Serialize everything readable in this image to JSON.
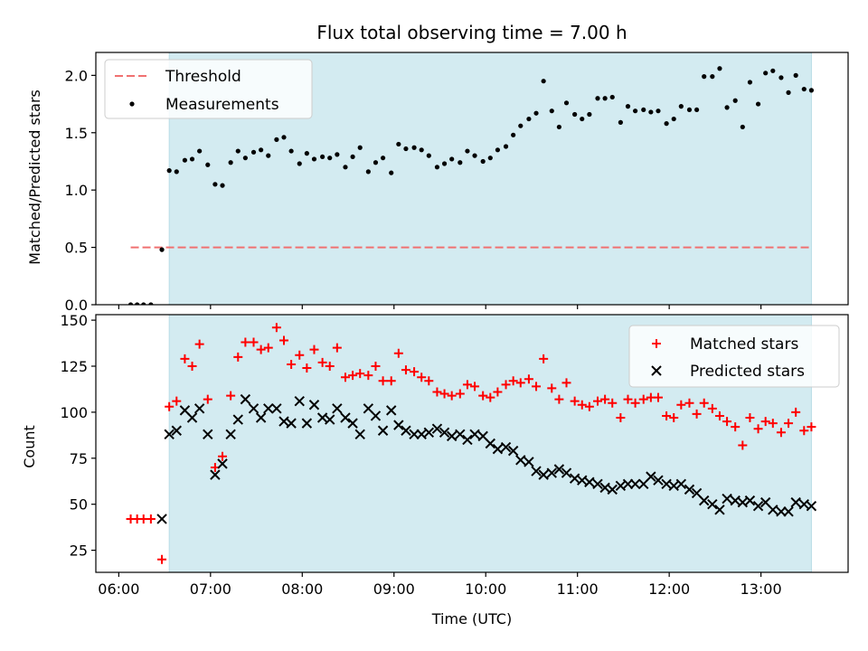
{
  "chart_data": [
    {
      "type": "scatter",
      "title": "Flux total observing time = 7.00 h",
      "ylabel": "Matched/Predicted stars",
      "xlabel": "",
      "x_unit": "hours (UTC)",
      "xlim": [
        5.75,
        13.95
      ],
      "ylim": [
        0,
        2.2
      ],
      "yticks": [
        0.0,
        0.5,
        1.0,
        1.5,
        2.0
      ],
      "ytick_labels": [
        "0.0",
        "0.5",
        "1.0",
        "1.5",
        "2.0"
      ],
      "grid": false,
      "legend_position": "top-left",
      "shaded_interval": [
        6.55,
        13.55
      ],
      "shade_color": "#d3ebf1",
      "threshold": {
        "name": "Threshold",
        "y": 0.5,
        "x_start": 6.13,
        "x_end": 13.55,
        "color": "#f07171",
        "style": "dashed"
      },
      "series": [
        {
          "name": "Measurements",
          "color": "#000000",
          "marker": "dot",
          "x": [
            6.13,
            6.2,
            6.27,
            6.35,
            6.47,
            6.55,
            6.63,
            6.72,
            6.8,
            6.88,
            6.97,
            7.05,
            7.13,
            7.22,
            7.3,
            7.38,
            7.47,
            7.55,
            7.63,
            7.72,
            7.8,
            7.88,
            7.97,
            8.05,
            8.13,
            8.22,
            8.3,
            8.38,
            8.47,
            8.55,
            8.63,
            8.72,
            8.8,
            8.88,
            8.97,
            9.05,
            9.13,
            9.22,
            9.3,
            9.38,
            9.47,
            9.55,
            9.63,
            9.72,
            9.8,
            9.88,
            9.97,
            10.05,
            10.13,
            10.22,
            10.3,
            10.38,
            10.47,
            10.55,
            10.63,
            10.72,
            10.8,
            10.88,
            10.97,
            11.05,
            11.13,
            11.22,
            11.3,
            11.38,
            11.47,
            11.55,
            11.63,
            11.72,
            11.8,
            11.88,
            11.97,
            12.05,
            12.13,
            12.22,
            12.3,
            12.38,
            12.47,
            12.55,
            12.63,
            12.72,
            12.8,
            12.88,
            12.97,
            13.05,
            13.13,
            13.22,
            13.3,
            13.38,
            13.47,
            13.55
          ],
          "y": [
            0.0,
            0.0,
            0.0,
            0.0,
            0.48,
            1.17,
            1.16,
            1.26,
            1.27,
            1.34,
            1.22,
            1.05,
            1.04,
            1.24,
            1.34,
            1.28,
            1.33,
            1.35,
            1.3,
            1.44,
            1.46,
            1.34,
            1.23,
            1.32,
            1.27,
            1.29,
            1.28,
            1.31,
            1.2,
            1.29,
            1.37,
            1.16,
            1.24,
            1.28,
            1.15,
            1.4,
            1.36,
            1.37,
            1.35,
            1.3,
            1.2,
            1.23,
            1.27,
            1.24,
            1.34,
            1.3,
            1.25,
            1.28,
            1.35,
            1.38,
            1.48,
            1.56,
            1.62,
            1.67,
            1.95,
            1.69,
            1.55,
            1.76,
            1.66,
            1.62,
            1.66,
            1.8,
            1.8,
            1.81,
            1.59,
            1.73,
            1.69,
            1.7,
            1.68,
            1.69,
            1.58,
            1.62,
            1.73,
            1.7,
            1.7,
            1.99,
            1.99,
            2.06,
            1.72,
            1.78,
            1.55,
            1.94,
            1.75,
            2.02,
            2.04,
            1.98,
            1.85,
            2.0,
            1.88,
            1.87
          ]
        }
      ]
    },
    {
      "type": "scatter",
      "title": "",
      "ylabel": "Count",
      "xlabel": "Time (UTC)",
      "x_unit": "hours (UTC)",
      "xlim": [
        5.75,
        13.95
      ],
      "ylim": [
        13,
        153
      ],
      "yticks": [
        25,
        50,
        75,
        100,
        125,
        150
      ],
      "ytick_labels": [
        "25",
        "50",
        "75",
        "100",
        "125",
        "150"
      ],
      "xticks": [
        6,
        7,
        8,
        9,
        10,
        11,
        12,
        13
      ],
      "xtick_labels": [
        "06:00",
        "07:00",
        "08:00",
        "09:00",
        "10:00",
        "11:00",
        "12:00",
        "13:00"
      ],
      "grid": false,
      "legend_position": "top-right",
      "shaded_interval": [
        6.55,
        13.55
      ],
      "shade_color": "#d3ebf1",
      "series": [
        {
          "name": "Matched stars",
          "color": "#ff0000",
          "marker": "plus",
          "x": [
            6.13,
            6.2,
            6.27,
            6.35,
            6.47,
            6.55,
            6.63,
            6.72,
            6.8,
            6.88,
            6.97,
            7.05,
            7.13,
            7.22,
            7.3,
            7.38,
            7.47,
            7.55,
            7.63,
            7.72,
            7.8,
            7.88,
            7.97,
            8.05,
            8.13,
            8.22,
            8.3,
            8.38,
            8.47,
            8.55,
            8.63,
            8.72,
            8.8,
            8.88,
            8.97,
            9.05,
            9.13,
            9.22,
            9.3,
            9.38,
            9.47,
            9.55,
            9.63,
            9.72,
            9.8,
            9.88,
            9.97,
            10.05,
            10.13,
            10.22,
            10.3,
            10.38,
            10.47,
            10.55,
            10.63,
            10.72,
            10.8,
            10.88,
            10.97,
            11.05,
            11.13,
            11.22,
            11.3,
            11.38,
            11.47,
            11.55,
            11.63,
            11.72,
            11.8,
            11.88,
            11.97,
            12.05,
            12.13,
            12.22,
            12.3,
            12.38,
            12.47,
            12.55,
            12.63,
            12.72,
            12.8,
            12.88,
            12.97,
            13.05,
            13.13,
            13.22,
            13.3,
            13.38,
            13.47,
            13.55
          ],
          "y": [
            42,
            42,
            42,
            42,
            20,
            103,
            106,
            129,
            125,
            137,
            107,
            70,
            76,
            109,
            130,
            138,
            138,
            134,
            135,
            146,
            139,
            126,
            131,
            124,
            134,
            127,
            125,
            135,
            119,
            120,
            121,
            120,
            125,
            117,
            117,
            132,
            123,
            122,
            119,
            117,
            111,
            110,
            109,
            110,
            115,
            114,
            109,
            108,
            111,
            115,
            117,
            116,
            118,
            114,
            129,
            113,
            107,
            116,
            106,
            104,
            103,
            106,
            107,
            105,
            97,
            107,
            105,
            107,
            108,
            108,
            98,
            97,
            104,
            105,
            99,
            105,
            102,
            98,
            95,
            92,
            82,
            97,
            91,
            95,
            94,
            89,
            94,
            100,
            90,
            92
          ]
        },
        {
          "name": "Predicted stars",
          "color": "#000000",
          "marker": "x",
          "x": [
            6.47,
            6.55,
            6.63,
            6.72,
            6.8,
            6.88,
            6.97,
            7.05,
            7.13,
            7.22,
            7.3,
            7.38,
            7.47,
            7.55,
            7.63,
            7.72,
            7.8,
            7.88,
            7.97,
            8.05,
            8.13,
            8.22,
            8.3,
            8.38,
            8.47,
            8.55,
            8.63,
            8.72,
            8.8,
            8.88,
            8.97,
            9.05,
            9.13,
            9.22,
            9.3,
            9.38,
            9.47,
            9.55,
            9.63,
            9.72,
            9.8,
            9.88,
            9.97,
            10.05,
            10.13,
            10.22,
            10.3,
            10.38,
            10.47,
            10.55,
            10.63,
            10.72,
            10.8,
            10.88,
            10.97,
            11.05,
            11.13,
            11.22,
            11.3,
            11.38,
            11.47,
            11.55,
            11.63,
            11.72,
            11.8,
            11.88,
            11.97,
            12.05,
            12.13,
            12.22,
            12.3,
            12.38,
            12.47,
            12.55,
            12.63,
            12.72,
            12.8,
            12.88,
            12.97,
            13.05,
            13.13,
            13.22,
            13.3,
            13.38,
            13.47,
            13.55
          ],
          "y": [
            42,
            88,
            90,
            101,
            97,
            102,
            88,
            66,
            72,
            88,
            96,
            107,
            102,
            97,
            102,
            102,
            95,
            94,
            106,
            94,
            104,
            97,
            96,
            102,
            97,
            94,
            88,
            102,
            98,
            90,
            101,
            93,
            90,
            88,
            88,
            89,
            91,
            89,
            87,
            88,
            85,
            88,
            87,
            83,
            80,
            81,
            79,
            74,
            73,
            68,
            66,
            67,
            69,
            67,
            64,
            63,
            62,
            61,
            59,
            58,
            60,
            61,
            61,
            61,
            65,
            63,
            61,
            60,
            61,
            58,
            56,
            52,
            50,
            47,
            53,
            52,
            51,
            52,
            49,
            51,
            47,
            46,
            46,
            51,
            50,
            49
          ]
        }
      ]
    }
  ]
}
